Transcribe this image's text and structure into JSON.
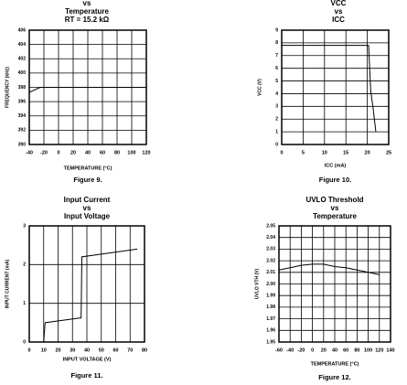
{
  "chart_data": [
    {
      "type": "line",
      "title_lines": [
        "vs",
        "Temperature",
        "RT = 15.2 kΩ"
      ],
      "x": [
        -40,
        -25,
        0,
        40,
        80,
        120
      ],
      "values": [
        397.3,
        398,
        398,
        398,
        398,
        398
      ],
      "color": "#000000",
      "xlim": [
        -40,
        120
      ],
      "ylim": [
        390,
        406
      ],
      "xticks": [
        -40,
        -20,
        0,
        20,
        40,
        60,
        80,
        100,
        120
      ],
      "yticks": [
        390,
        392,
        394,
        396,
        398,
        400,
        402,
        404,
        406
      ],
      "xlabel": "TEMPERATURE (°C)",
      "ylabel": "FREQUENCY (kHz)",
      "caption": "Figure 9.",
      "grid": true
    },
    {
      "type": "line",
      "title_lines": [
        "VCC",
        "vs",
        "ICC"
      ],
      "x": [
        0,
        20.3,
        20.8,
        21.3,
        22
      ],
      "values": [
        7.8,
        7.8,
        4.2,
        3.0,
        1.0
      ],
      "color": "#000000",
      "xlim": [
        0,
        25
      ],
      "ylim": [
        0,
        9
      ],
      "xticks": [
        0,
        5,
        10,
        15,
        20,
        25
      ],
      "yticks": [
        0,
        1,
        2,
        3,
        4,
        5,
        6,
        7,
        8,
        9
      ],
      "xlabel": "ICC (mA)",
      "ylabel": "VCC (V)",
      "caption": "Figure 10.",
      "grid": true
    },
    {
      "type": "line",
      "title_lines": [
        "Input Current",
        "vs",
        "Input Voltage"
      ],
      "x": [
        10,
        11,
        35,
        36,
        36.5,
        75
      ],
      "values": [
        0,
        0.5,
        0.62,
        0.62,
        2.2,
        2.4
      ],
      "color": "#000000",
      "xlim": [
        0,
        80
      ],
      "ylim": [
        0,
        3
      ],
      "xticks": [
        0,
        10,
        20,
        30,
        40,
        50,
        60,
        70,
        80
      ],
      "yticks": [
        0,
        1,
        2,
        3
      ],
      "xlabel": "INPUT VOLTAGE (V)",
      "ylabel": "INPUT CURRENT (mA)",
      "caption": "Figure 11.",
      "grid": true
    },
    {
      "type": "line",
      "title_lines": [
        "UVLO Threshold",
        "vs",
        "Temperature"
      ],
      "x": [
        -60,
        -40,
        -20,
        0,
        20,
        40,
        60,
        80,
        100,
        120
      ],
      "values": [
        2.012,
        2.014,
        2.016,
        2.017,
        2.017,
        2.015,
        2.014,
        2.012,
        2.01,
        2.008
      ],
      "color": "#000000",
      "xlim": [
        -60,
        140
      ],
      "ylim": [
        1.95,
        2.05
      ],
      "xticks": [
        -60,
        -40,
        -20,
        0,
        20,
        40,
        60,
        80,
        100,
        120,
        140
      ],
      "yticks": [
        1.95,
        1.96,
        1.97,
        1.98,
        1.99,
        {
          "value": 2,
          "label": "2.00"
        },
        2.01,
        2.02,
        2.03,
        2.04,
        2.05
      ],
      "xlabel": "TEMPERATURE (°C)",
      "ylabel": "UVLO VTH (V)",
      "caption": "Figure 12.",
      "grid": true
    }
  ]
}
